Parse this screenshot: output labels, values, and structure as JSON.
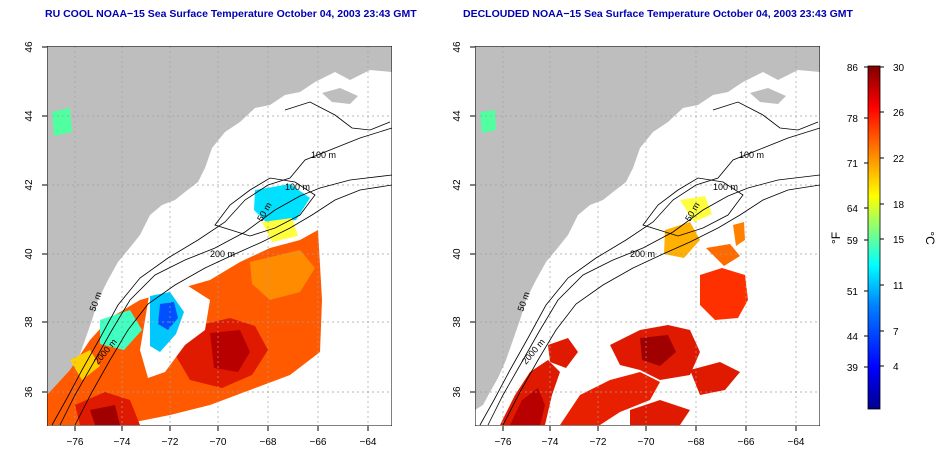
{
  "panels": [
    {
      "title": "RU COOL NOAA−15 Sea Surface Temperature October 04, 2003 23:43 GMT",
      "x_ticks": [
        "−76",
        "−74",
        "−72",
        "−70",
        "−68",
        "−66",
        "−64"
      ],
      "y_ticks": [
        "36",
        "38",
        "40",
        "42",
        "44",
        "46"
      ],
      "contour_labels": [
        "100 m",
        "100 m",
        "50 m",
        "200 m",
        "50 m",
        "2000 m"
      ]
    },
    {
      "title": "DECLOUDED NOAA−15 Sea Surface Temperature October 04, 2003 23:43 GMT",
      "x_ticks": [
        "−76",
        "−74",
        "−72",
        "−70",
        "−68",
        "−66",
        "−64"
      ],
      "y_ticks": [
        "36",
        "38",
        "40",
        "42",
        "44",
        "46"
      ],
      "contour_labels": [
        "100 m",
        "100 m",
        "50 m",
        "200 m",
        "50 m",
        "2000 m"
      ]
    }
  ],
  "colorbar": {
    "fahrenheit_ticks": [
      "86",
      "78",
      "71",
      "64",
      "59",
      "51",
      "44",
      "39"
    ],
    "celsius_ticks": [
      "30",
      "26",
      "22",
      "18",
      "15",
      "11",
      "7",
      "4"
    ],
    "left_unit": "°F",
    "right_unit": "°C",
    "colors": [
      "#00008f",
      "#0000ff",
      "#0080ff",
      "#00ffff",
      "#80ff80",
      "#ffff00",
      "#ff8000",
      "#ff0000",
      "#800000"
    ]
  },
  "colors": {
    "land": "#bebebe",
    "ocean_nodata": "#ffffff",
    "contour": "#000000",
    "grid": "#a0a0a0",
    "title": "#0000b4"
  }
}
